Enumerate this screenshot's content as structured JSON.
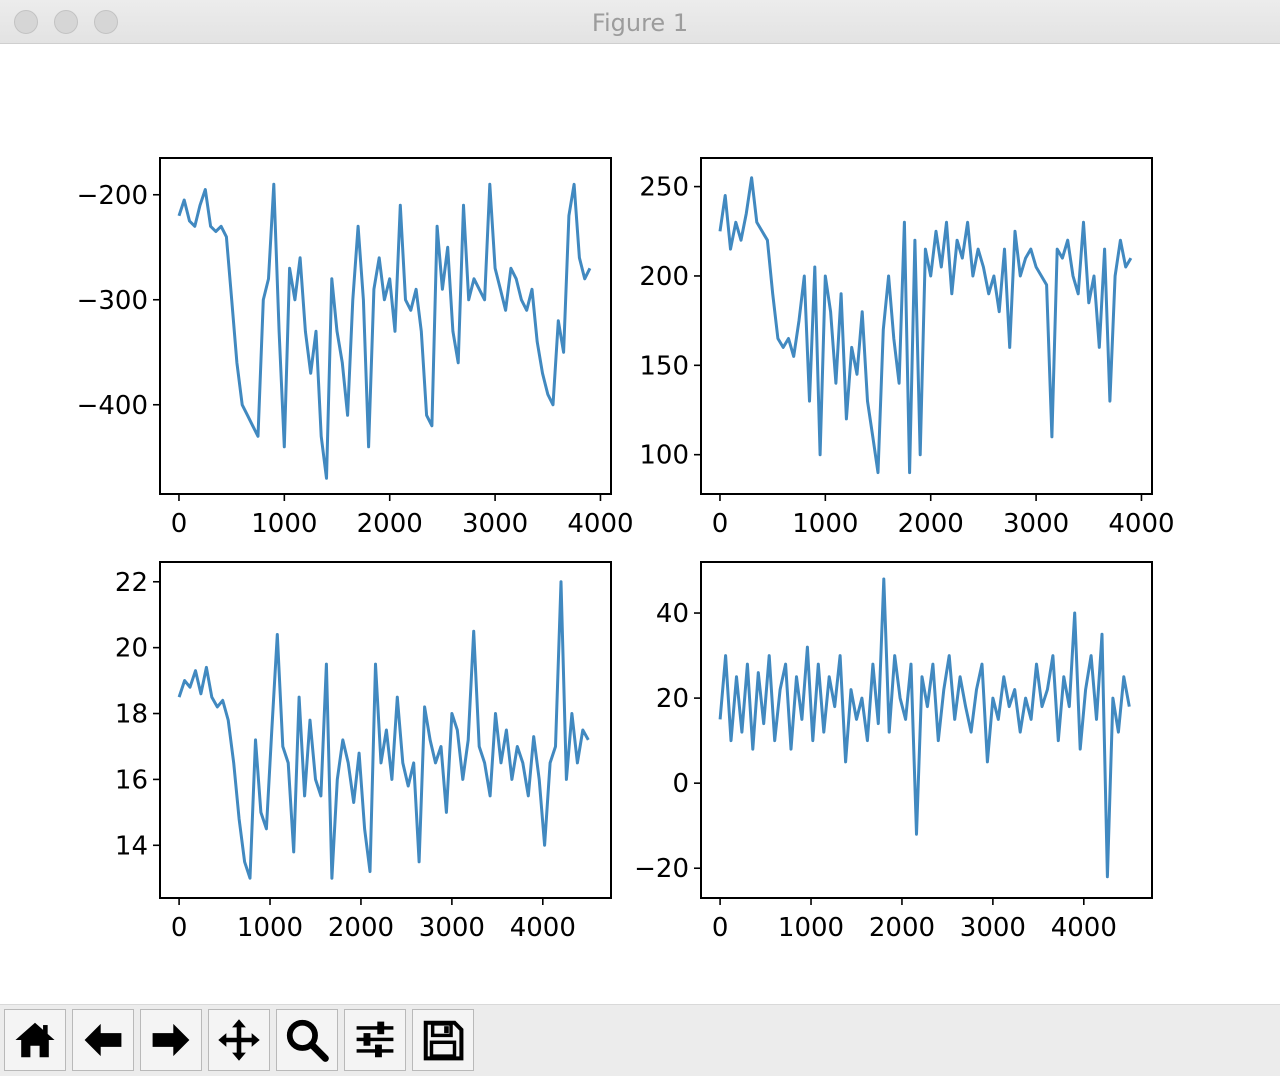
{
  "window": {
    "title": "Figure 1"
  },
  "toolbar": {
    "buttons": [
      {
        "name": "home-button",
        "icon": "home-icon"
      },
      {
        "name": "back-button",
        "icon": "arrow-left-icon"
      },
      {
        "name": "forward-button",
        "icon": "arrow-right-icon"
      },
      {
        "name": "pan-button",
        "icon": "move-icon"
      },
      {
        "name": "zoom-button",
        "icon": "magnifier-icon"
      },
      {
        "name": "configure-subplots-button",
        "icon": "sliders-icon"
      },
      {
        "name": "save-button",
        "icon": "floppy-disk-icon"
      }
    ]
  },
  "colors": {
    "line": "#4189c0",
    "axes": "#000000"
  },
  "chart_data": [
    {
      "type": "line",
      "xlim": [
        -180,
        4100
      ],
      "ylim": [
        -485,
        -165
      ],
      "xticks": [
        0,
        1000,
        2000,
        3000,
        4000
      ],
      "xtick_labels": [
        "0",
        "1000",
        "2000",
        "3000",
        "4000"
      ],
      "yticks": [
        -200,
        -300,
        -400
      ],
      "ytick_labels": [
        "−200",
        "−300",
        "−400"
      ],
      "series": [
        {
          "x": [
            0,
            50,
            100,
            150,
            200,
            250,
            300,
            350,
            400,
            450,
            500,
            550,
            600,
            650,
            700,
            750,
            800,
            850,
            900,
            950,
            1000,
            1050,
            1100,
            1150,
            1200,
            1250,
            1300,
            1350,
            1400,
            1450,
            1500,
            1550,
            1600,
            1650,
            1700,
            1750,
            1800,
            1850,
            1900,
            1950,
            2000,
            2050,
            2100,
            2150,
            2200,
            2250,
            2300,
            2350,
            2400,
            2450,
            2500,
            2550,
            2600,
            2650,
            2700,
            2750,
            2800,
            2850,
            2900,
            2950,
            3000,
            3050,
            3100,
            3150,
            3200,
            3250,
            3300,
            3350,
            3400,
            3450,
            3500,
            3550,
            3600,
            3650,
            3700,
            3750,
            3800,
            3850,
            3900
          ],
          "y": [
            -220,
            -205,
            -225,
            -230,
            -210,
            -195,
            -230,
            -235,
            -230,
            -240,
            -300,
            -360,
            -400,
            -410,
            -420,
            -430,
            -300,
            -280,
            -190,
            -330,
            -440,
            -270,
            -300,
            -260,
            -330,
            -370,
            -330,
            -430,
            -470,
            -280,
            -330,
            -360,
            -410,
            -300,
            -230,
            -300,
            -440,
            -290,
            -260,
            -300,
            -280,
            -330,
            -210,
            -300,
            -310,
            -290,
            -330,
            -410,
            -420,
            -230,
            -290,
            -250,
            -330,
            -360,
            -210,
            -300,
            -280,
            -290,
            -300,
            -190,
            -270,
            -290,
            -310,
            -270,
            -280,
            -300,
            -310,
            -290,
            -340,
            -370,
            -390,
            -400,
            -320,
            -350,
            -220,
            -190,
            -260,
            -280,
            -270
          ]
        }
      ]
    },
    {
      "type": "line",
      "xlim": [
        -180,
        4100
      ],
      "ylim": [
        78,
        266
      ],
      "xticks": [
        0,
        1000,
        2000,
        3000,
        4000
      ],
      "xtick_labels": [
        "0",
        "1000",
        "2000",
        "3000",
        "4000"
      ],
      "yticks": [
        250,
        200,
        150,
        100
      ],
      "ytick_labels": [
        "250",
        "200",
        "150",
        "100"
      ],
      "series": [
        {
          "x": [
            0,
            50,
            100,
            150,
            200,
            250,
            300,
            350,
            400,
            450,
            500,
            550,
            600,
            650,
            700,
            750,
            800,
            850,
            900,
            950,
            1000,
            1050,
            1100,
            1150,
            1200,
            1250,
            1300,
            1350,
            1400,
            1450,
            1500,
            1550,
            1600,
            1650,
            1700,
            1750,
            1800,
            1850,
            1900,
            1950,
            2000,
            2050,
            2100,
            2150,
            2200,
            2250,
            2300,
            2350,
            2400,
            2450,
            2500,
            2550,
            2600,
            2650,
            2700,
            2750,
            2800,
            2850,
            2900,
            2950,
            3000,
            3050,
            3100,
            3150,
            3200,
            3250,
            3300,
            3350,
            3400,
            3450,
            3500,
            3550,
            3600,
            3650,
            3700,
            3750,
            3800,
            3850,
            3900
          ],
          "y": [
            225,
            245,
            215,
            230,
            220,
            235,
            255,
            230,
            225,
            220,
            190,
            165,
            160,
            165,
            155,
            175,
            200,
            130,
            205,
            100,
            200,
            180,
            140,
            190,
            120,
            160,
            145,
            180,
            130,
            110,
            90,
            170,
            200,
            165,
            140,
            230,
            90,
            220,
            100,
            215,
            200,
            225,
            205,
            230,
            190,
            220,
            210,
            230,
            200,
            215,
            205,
            190,
            200,
            180,
            215,
            160,
            225,
            200,
            210,
            215,
            205,
            200,
            195,
            110,
            215,
            210,
            220,
            200,
            190,
            230,
            185,
            200,
            160,
            215,
            130,
            200,
            220,
            205,
            210
          ]
        }
      ]
    },
    {
      "type": "line",
      "xlim": [
        -210,
        4750
      ],
      "ylim": [
        12.4,
        22.6
      ],
      "xticks": [
        0,
        1000,
        2000,
        3000,
        4000
      ],
      "xtick_labels": [
        "0",
        "1000",
        "2000",
        "3000",
        "4000"
      ],
      "yticks": [
        22,
        20,
        18,
        16,
        14
      ],
      "ytick_labels": [
        "22",
        "20",
        "18",
        "16",
        "14"
      ],
      "series": [
        {
          "x": [
            0,
            60,
            120,
            180,
            240,
            300,
            360,
            420,
            480,
            540,
            600,
            660,
            720,
            780,
            840,
            900,
            960,
            1020,
            1080,
            1140,
            1200,
            1260,
            1320,
            1380,
            1440,
            1500,
            1560,
            1620,
            1680,
            1740,
            1800,
            1860,
            1920,
            1980,
            2040,
            2100,
            2160,
            2220,
            2280,
            2340,
            2400,
            2460,
            2520,
            2580,
            2640,
            2700,
            2760,
            2820,
            2880,
            2940,
            3000,
            3060,
            3120,
            3180,
            3240,
            3300,
            3360,
            3420,
            3480,
            3540,
            3600,
            3660,
            3720,
            3780,
            3840,
            3900,
            3960,
            4020,
            4080,
            4140,
            4200,
            4260,
            4320,
            4380,
            4440,
            4500
          ],
          "y": [
            18.5,
            19,
            18.8,
            19.3,
            18.6,
            19.4,
            18.5,
            18.2,
            18.4,
            17.8,
            16.5,
            14.8,
            13.5,
            13.0,
            17.2,
            15.0,
            14.5,
            17.5,
            20.4,
            17.0,
            16.5,
            13.8,
            18.5,
            15.5,
            17.8,
            16.0,
            15.5,
            19.5,
            13.0,
            16.0,
            17.2,
            16.5,
            15.3,
            16.8,
            14.5,
            13.2,
            19.5,
            16.5,
            17.5,
            16.0,
            18.5,
            16.5,
            15.8,
            16.5,
            13.5,
            18.2,
            17.2,
            16.5,
            17.0,
            15.0,
            18.0,
            17.5,
            16.0,
            17.2,
            20.5,
            17.0,
            16.5,
            15.5,
            18.0,
            16.5,
            17.5,
            16.0,
            17.0,
            16.5,
            15.5,
            17.3,
            16.0,
            14.0,
            16.5,
            17.0,
            22.0,
            16.0,
            18.0,
            16.5,
            17.5,
            17.2
          ]
        }
      ]
    },
    {
      "type": "line",
      "xlim": [
        -210,
        4750
      ],
      "ylim": [
        -27,
        52
      ],
      "xticks": [
        0,
        1000,
        2000,
        3000,
        4000
      ],
      "xtick_labels": [
        "0",
        "1000",
        "2000",
        "3000",
        "4000"
      ],
      "yticks": [
        40,
        20,
        0,
        -20
      ],
      "ytick_labels": [
        "40",
        "20",
        "0",
        "−20"
      ],
      "series": [
        {
          "x": [
            0,
            60,
            120,
            180,
            240,
            300,
            360,
            420,
            480,
            540,
            600,
            660,
            720,
            780,
            840,
            900,
            960,
            1020,
            1080,
            1140,
            1200,
            1260,
            1320,
            1380,
            1440,
            1500,
            1560,
            1620,
            1680,
            1740,
            1800,
            1860,
            1920,
            1980,
            2040,
            2100,
            2160,
            2220,
            2280,
            2340,
            2400,
            2460,
            2520,
            2580,
            2640,
            2700,
            2760,
            2820,
            2880,
            2940,
            3000,
            3060,
            3120,
            3180,
            3240,
            3300,
            3360,
            3420,
            3480,
            3540,
            3600,
            3660,
            3720,
            3780,
            3840,
            3900,
            3960,
            4020,
            4080,
            4140,
            4200,
            4260,
            4320,
            4380,
            4440,
            4500
          ],
          "y": [
            15,
            30,
            10,
            25,
            12,
            28,
            8,
            26,
            14,
            30,
            10,
            22,
            28,
            8,
            25,
            15,
            32,
            10,
            28,
            12,
            25,
            18,
            30,
            5,
            22,
            15,
            20,
            10,
            28,
            14,
            48,
            12,
            30,
            20,
            15,
            28,
            -12,
            25,
            18,
            28,
            10,
            22,
            30,
            15,
            25,
            18,
            12,
            22,
            28,
            5,
            20,
            15,
            25,
            18,
            22,
            12,
            20,
            15,
            28,
            18,
            22,
            30,
            10,
            25,
            18,
            40,
            8,
            22,
            30,
            15,
            35,
            -22,
            20,
            12,
            25,
            18
          ]
        }
      ]
    }
  ]
}
